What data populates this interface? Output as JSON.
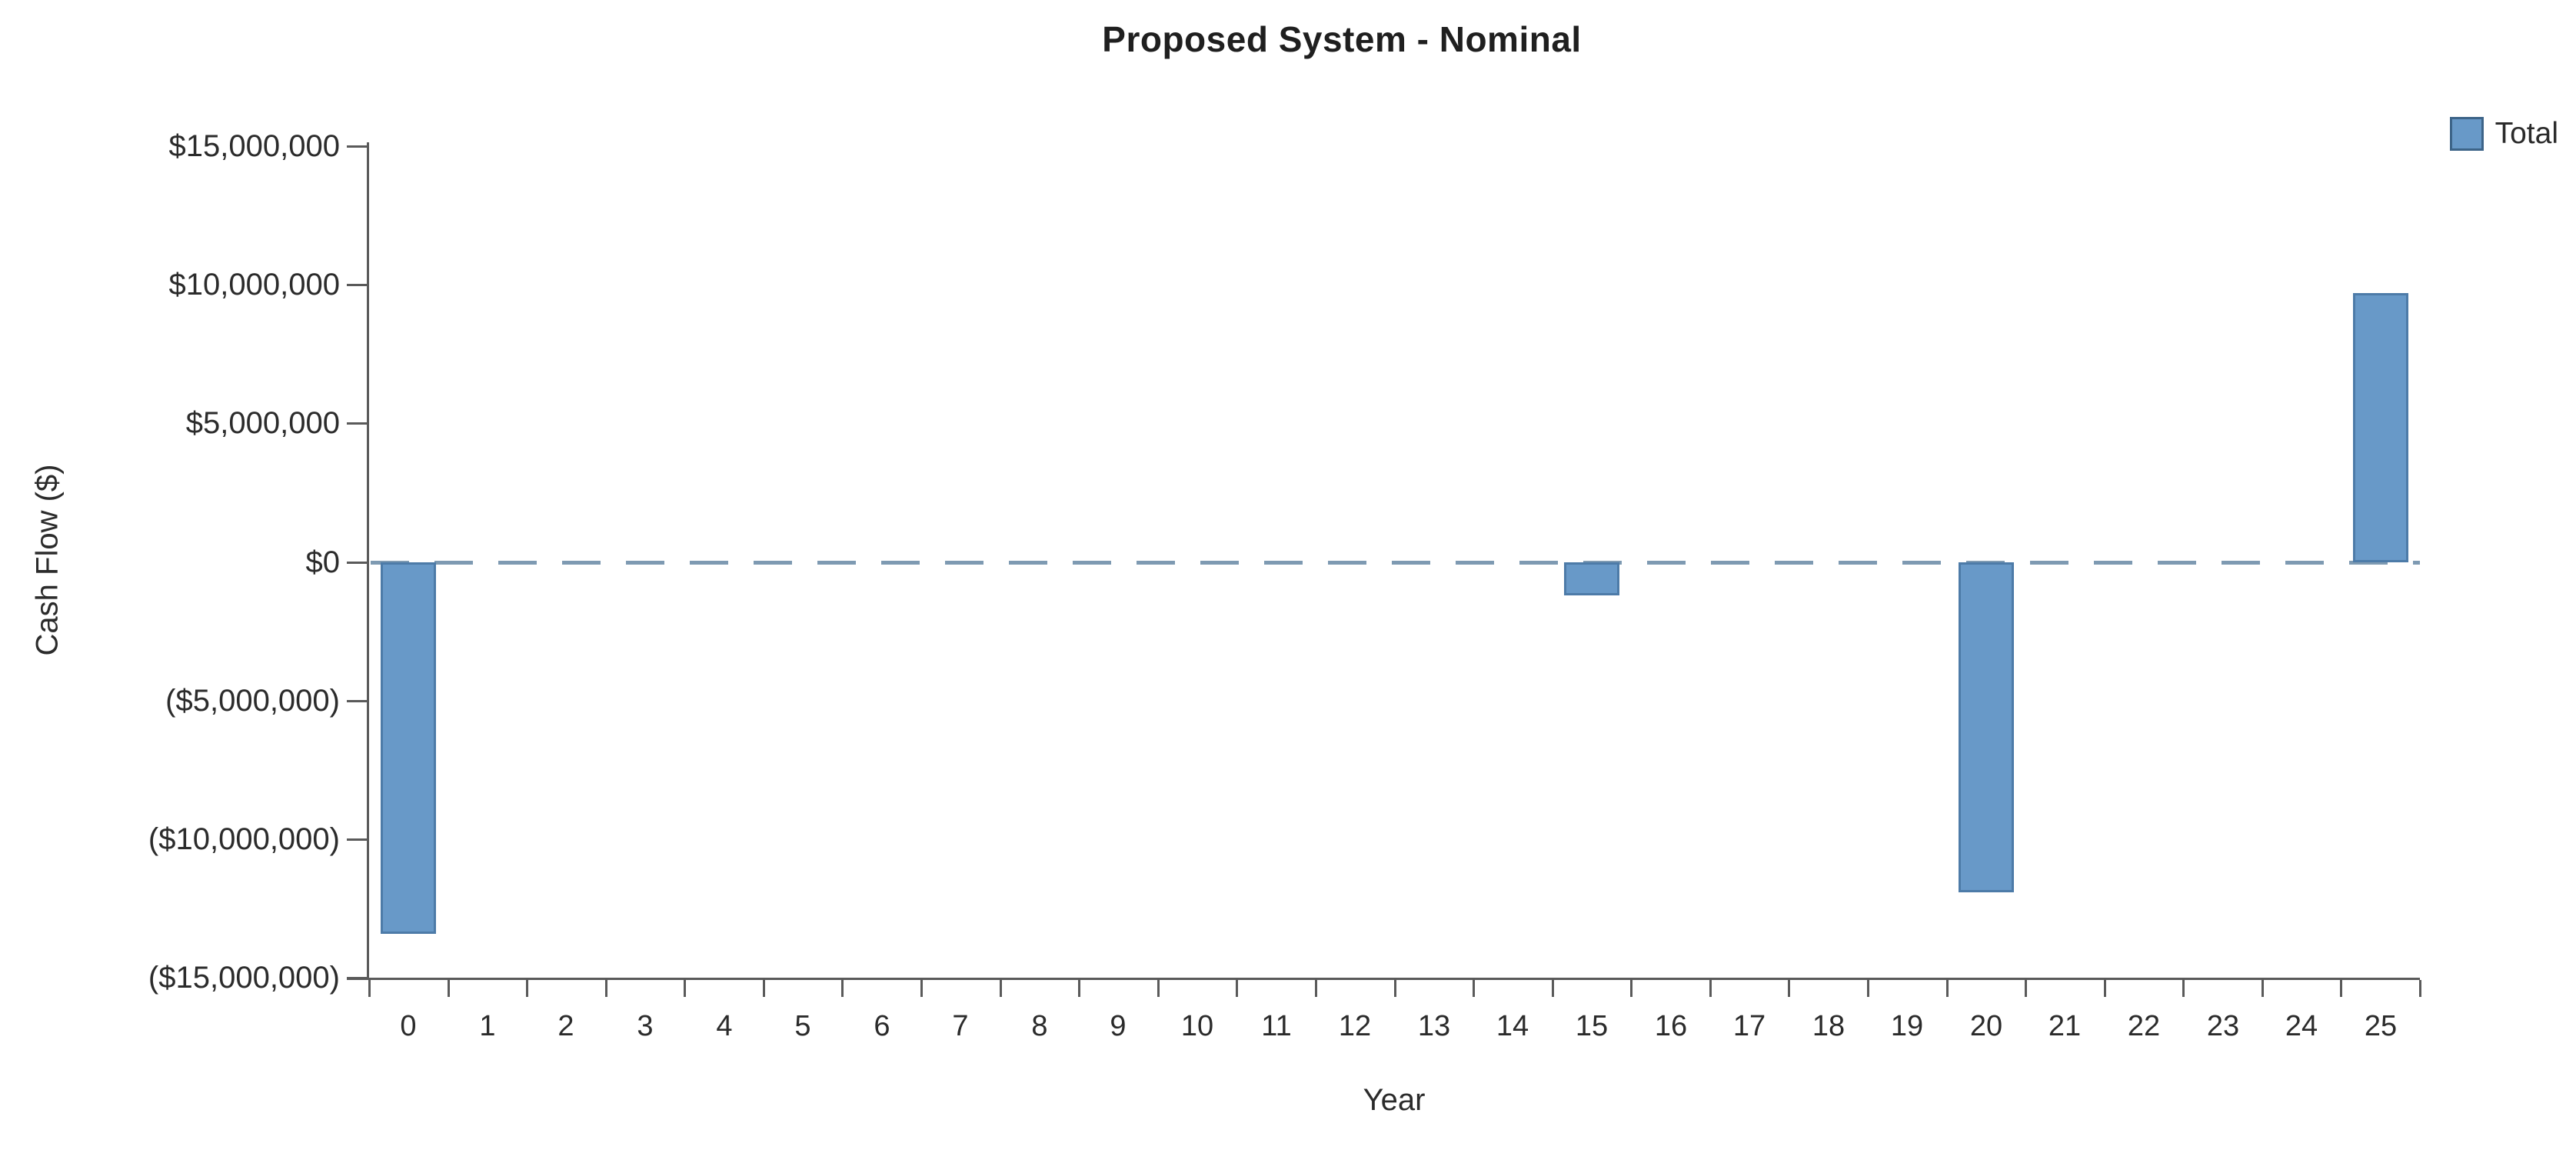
{
  "chart": {
    "title": "Proposed System - Nominal",
    "legend": {
      "label": "Total"
    },
    "y_axis": {
      "title": "Cash Flow ($)",
      "tick_labels": [
        "$15,000,000",
        "$10,000,000",
        "$5,000,000",
        "$0",
        "($5,000,000)",
        "($10,000,000)",
        "($15,000,000)"
      ]
    },
    "x_axis": {
      "title": "Year",
      "tick_labels": [
        "0",
        "1",
        "2",
        "3",
        "4",
        "5",
        "6",
        "7",
        "8",
        "9",
        "10",
        "11",
        "12",
        "13",
        "14",
        "15",
        "16",
        "17",
        "18",
        "19",
        "20",
        "21",
        "22",
        "23",
        "24",
        "25"
      ]
    },
    "colors": {
      "bar_fill": "#6899c8",
      "bar_border": "#4d7ba8",
      "legend_swatch_border": "#3d6488",
      "zero_line": "#7e9ab2",
      "axis_line": "#5a5a5a",
      "text": "#2b2b2b",
      "title_text": "#1f1f1f"
    }
  },
  "chart_data": {
    "type": "bar",
    "title": "Proposed System - Nominal",
    "xlabel": "Year",
    "ylabel": "Cash Flow ($)",
    "categories": [
      0,
      1,
      2,
      3,
      4,
      5,
      6,
      7,
      8,
      9,
      10,
      11,
      12,
      13,
      14,
      15,
      16,
      17,
      18,
      19,
      20,
      21,
      22,
      23,
      24,
      25
    ],
    "series": [
      {
        "name": "Total",
        "values": [
          -13400000,
          0,
          0,
          0,
          0,
          0,
          0,
          0,
          0,
          0,
          0,
          0,
          0,
          0,
          0,
          -1200000,
          0,
          0,
          0,
          0,
          -11900000,
          0,
          0,
          0,
          0,
          9700000
        ]
      }
    ],
    "ylim": [
      -15000000,
      15000000
    ],
    "y_tick_step": 5000000,
    "grid": false,
    "legend_position": "top-right",
    "zero_line_style": "dashed"
  }
}
